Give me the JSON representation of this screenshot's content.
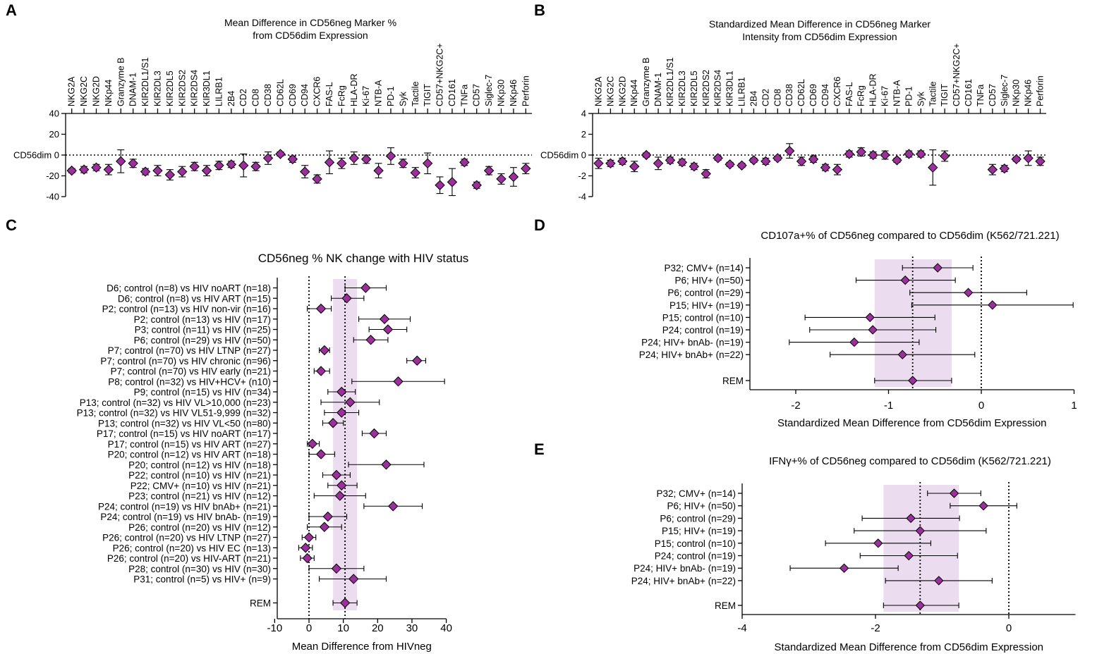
{
  "colors": {
    "marker": "#9b2f9b",
    "band": "#ecdcf0",
    "axis": "#000000"
  },
  "chart_data": [
    {
      "id": "A",
      "panel_label": "A",
      "type": "scatter",
      "title_lines": [
        "Mean Difference in CD56neg Marker %",
        "from CD56dim Expression"
      ],
      "ylim": [
        -40,
        40
      ],
      "yticks": [
        -40,
        -20,
        0,
        20,
        40
      ],
      "yticklabels": [
        "-40",
        "-20",
        "CD56dim 0",
        "20",
        "40"
      ],
      "reference_line_y": 0,
      "categories": [
        "NKG2A",
        "NKG2C",
        "NKG2D",
        "NKp44",
        "Granzyme B",
        "DNAM-1",
        "KIR2DL1/S1",
        "KIR2DL3",
        "KIR2DL5",
        "KIR2DS2",
        "KIR2DS4",
        "KIR3DL1",
        "LILRB1",
        "2B4",
        "CD2",
        "CD8",
        "CD38",
        "CD62L",
        "CD69",
        "CD94",
        "CXCR6",
        "FAS-L",
        "FcRg",
        "HLA-DR",
        "Ki-67",
        "NTB-A",
        "PD-1",
        "Syk",
        "Tactile",
        "TIGIT",
        "CD57+NKG2C+",
        "CD161",
        "TNFa",
        "CD57",
        "Siglec-7",
        "NKp30",
        "NKp46",
        "Perforin"
      ],
      "values": [
        -15,
        -14,
        -12,
        -14,
        -6,
        -8,
        -16,
        -15,
        -19,
        -16,
        -11,
        -15,
        -10,
        -9,
        -10,
        -11,
        -3,
        1,
        -4,
        -16,
        -23,
        -7,
        -8,
        -3,
        -4,
        -15,
        -1,
        -8,
        -17,
        -8,
        -29,
        -26,
        -7,
        -29,
        -15,
        -23,
        -21,
        -13
      ],
      "errors": [
        2,
        3,
        3,
        5,
        11,
        4,
        3,
        5,
        5,
        5,
        4,
        5,
        4,
        3,
        11,
        4,
        6,
        2,
        3,
        6,
        4,
        11,
        5,
        6,
        4,
        7,
        8,
        4,
        5,
        10,
        8,
        13,
        3,
        3,
        4,
        5,
        9,
        5
      ]
    },
    {
      "id": "B",
      "panel_label": "B",
      "type": "scatter",
      "title_lines": [
        "Standardized Mean Difference in CD56neg Marker",
        "Intensity from CD56dim Expression"
      ],
      "ylim": [
        -4,
        4
      ],
      "yticks": [
        -4,
        -2,
        0,
        2,
        4
      ],
      "yticklabels": [
        "-4",
        "-2",
        "CD56dim 0",
        "2",
        "4"
      ],
      "reference_line_y": 0,
      "categories": [
        "NKG2A",
        "NKG2C",
        "NKG2D",
        "NKp44",
        "Granzyme B",
        "DNAM-1",
        "KIR2DL1/S1",
        "KIR2DL3",
        "KIR2DL5",
        "KIR2DS2",
        "KIR2DS4",
        "KIR3DL1",
        "LILRB1",
        "2B4",
        "CD2",
        "CD8",
        "CD38",
        "CD62L",
        "CD69",
        "CD94",
        "CXCR6",
        "FAS-L",
        "FcRg",
        "HLA-DR",
        "Ki-67",
        "NTB-A",
        "PD-1",
        "Syk",
        "Tactile",
        "TIGIT",
        "CD57+NKG2C+",
        "CD161",
        "TNFa",
        "CD57",
        "Siglec-7",
        "NKp30",
        "NKp46",
        "Perforin"
      ],
      "values": [
        -0.8,
        -0.8,
        -0.6,
        -1.1,
        0.0,
        -0.8,
        -0.5,
        -0.7,
        -1.1,
        -1.8,
        -0.3,
        -0.9,
        -1.0,
        -0.5,
        -0.6,
        -0.3,
        0.4,
        -0.6,
        -0.4,
        -1.2,
        -1.4,
        0.1,
        0.3,
        0.0,
        0.0,
        -0.5,
        0.1,
        0.1,
        -1.2,
        -0.1,
        null,
        null,
        null,
        -1.4,
        -1.3,
        -0.4,
        -0.3,
        -0.6
      ],
      "errors": [
        0.5,
        0.3,
        0.3,
        0.5,
        0.2,
        0.6,
        0.3,
        0.3,
        0.3,
        0.4,
        0.2,
        0.2,
        0.2,
        0.2,
        0.3,
        0.2,
        0.7,
        0.4,
        0.3,
        0.3,
        0.5,
        0.3,
        0.4,
        0.3,
        0.4,
        0.2,
        0.3,
        0.3,
        1.7,
        0.5,
        null,
        null,
        null,
        0.5,
        0.3,
        0.2,
        0.7,
        0.4
      ]
    },
    {
      "id": "C",
      "panel_label": "C",
      "type": "forest",
      "title": "CD56neg % NK change with HIV status",
      "xlabel": "Mean Difference from HIVneg",
      "xlim": [
        -10,
        40
      ],
      "xticks": [
        -10,
        0,
        10,
        20,
        30,
        40
      ],
      "xticklabels": [
        "-10",
        "0",
        "10",
        "20",
        "30",
        "40"
      ],
      "reference_line_x": 0,
      "rem_label": "REM",
      "rem_value": 10.5,
      "rem_ci": [
        7,
        14
      ],
      "labels": [
        "D6; control (n=8) vs HIV noART (n=18)",
        "D6; control (n=8) vs HIV ART (n=15)",
        "P2; control (n=13) vs HIV non-vir (n=16)",
        "P2; control (n=13) vs HIV (n=17)",
        "P3; control (n=11) vs HIV (n=25)",
        "P6; control (n=29) vs HIV (n=50)",
        "P7; control (n=70) vs HIV LTNP (n=27)",
        "P7; control (n=70) vs HIV chronic (n=96)",
        "P7; control (n=70) vs HIV early (n=21)",
        "P8; control (n=32) vs HIV+HCV+ (n10)",
        "P9; control (n=15) vs HIV (n=34)",
        "P13; control (n=32) vs HIV VL>10,000 (n=23)",
        "P13; control (n=32) vs HIV VL51-9,999 (n=32)",
        "P13; control (n=32) vs HIV VL<50 (n=80)",
        "P17; control (n=15) vs HIV noART (n=17)",
        "P17; control (n=15) vs HIV ART (n=27)",
        "P20; control (n=12) vs HIV ART (n=18)",
        "P20; control (n=12) vs HIV (n=18)",
        "P22; control (n=10) vs HIV (n=21)",
        "P22; CMV+ (n=10) vs HIV (n=21)",
        "P23; control (n=21) vs HIV (n=12)",
        "P24; control (n=19) vs HIV bnAb+ (n=21)",
        "P24; control (n=19) vs HIV bnAb- (n=19)",
        "P26; control (n=20) vs HIV (n=12)",
        "P26; control (n=20) vs HIV LTNP (n=27)",
        "P26; control (n=20) vs HIV EC (n=13)",
        "P26; control (n=20) vs HIV-ART (n=21)",
        "P28; control (n=30) vs HIV (n=30)",
        "P31; control (n=5) vs HIV+ (n=9)"
      ],
      "values": [
        16.5,
        11,
        3.5,
        22,
        23,
        18,
        4.5,
        31.5,
        3.5,
        26,
        9.5,
        12,
        9.5,
        7,
        19,
        1,
        3.5,
        22.5,
        8,
        9.5,
        9,
        24.5,
        5.5,
        4.5,
        0,
        -1,
        -0.5,
        8,
        13
      ],
      "ci_low": [
        10.5,
        6.5,
        -0.5,
        14.5,
        17.5,
        13,
        3,
        28.5,
        1.5,
        12.5,
        5.5,
        3.5,
        4.5,
        4,
        15.5,
        -0.5,
        0,
        11.5,
        4,
        5.5,
        1.5,
        16,
        0,
        -0.5,
        -2,
        -3,
        -2.5,
        0,
        3
      ],
      "ci_high": [
        22.5,
        16,
        6.5,
        29.5,
        28.5,
        23,
        6,
        34,
        6,
        39.5,
        13.5,
        20.5,
        14.5,
        10,
        22.5,
        3,
        7.5,
        33.5,
        12,
        14,
        16.5,
        33,
        11,
        9.5,
        2,
        1,
        1.5,
        16,
        22.5
      ]
    },
    {
      "id": "D",
      "panel_label": "D",
      "type": "forest",
      "title": "CD107a+% of CD56neg compared to CD56dim (K562/721.221)",
      "xlabel": "Standardized Mean Difference from CD56dim Expression",
      "xlim": [
        -2.5,
        1.0
      ],
      "xticks": [
        -2,
        -1,
        0,
        1
      ],
      "xticklabels": [
        "-2",
        "-1",
        "0",
        "1"
      ],
      "reference_line_x": 0,
      "rem_label": "REM",
      "rem_value": -0.74,
      "rem_ci": [
        -1.15,
        -0.32
      ],
      "labels": [
        "P32; CMV+ (n=14)",
        "P6; HIV+ (n=50)",
        "P6; control (n=29)",
        "P15; HIV+ (n=19)",
        "P15; control (n=10)",
        "P24; control (n=19)",
        "P24; HIV+ bnAb- (n=19)",
        "P24; HIV+ bnAb+ (n=22)"
      ],
      "values": [
        -0.47,
        -0.82,
        -0.14,
        0.12,
        -1.2,
        -1.17,
        -1.37,
        -0.85
      ],
      "ci_low": [
        -0.85,
        -1.35,
        -0.77,
        -0.75,
        -1.9,
        -1.85,
        -2.07,
        -1.63
      ],
      "ci_high": [
        -0.09,
        -0.28,
        0.49,
        0.99,
        -0.5,
        -0.49,
        -0.67,
        -0.07
      ]
    },
    {
      "id": "E",
      "panel_label": "E",
      "type": "forest",
      "title": "IFNγ+% of CD56neg compared to CD56dim (K562/721.221)",
      "xlabel": "Standardized Mean Difference from CD56dim Expression",
      "xlim": [
        -4,
        1.0
      ],
      "xticks": [
        -4,
        -2,
        0
      ],
      "xticklabels": [
        "-4",
        "-2",
        "0"
      ],
      "reference_line_x": 0,
      "rem_label": "REM",
      "rem_value": -1.33,
      "rem_ci": [
        -1.88,
        -0.75
      ],
      "labels": [
        "P32; CMV+ (n=14)",
        "P6; HIV+ (n=50)",
        "P6; control (n=29)",
        "P15; HIV+ (n=19)",
        "P15; control (n=10)",
        "P24; control (n=19)",
        "P24; HIV+ bnAb- (n=19)",
        "P24; HIV+ bnAb+ (n=22)"
      ],
      "values": [
        -0.82,
        -0.38,
        -1.47,
        -1.33,
        -1.96,
        -1.5,
        -2.47,
        -1.05
      ],
      "ci_low": [
        -1.22,
        -0.88,
        -2.2,
        -2.32,
        -2.75,
        -2.23,
        -3.28,
        -1.85
      ],
      "ci_high": [
        -0.42,
        0.12,
        -0.74,
        -0.34,
        -1.17,
        -0.77,
        -1.66,
        -0.25
      ]
    }
  ]
}
